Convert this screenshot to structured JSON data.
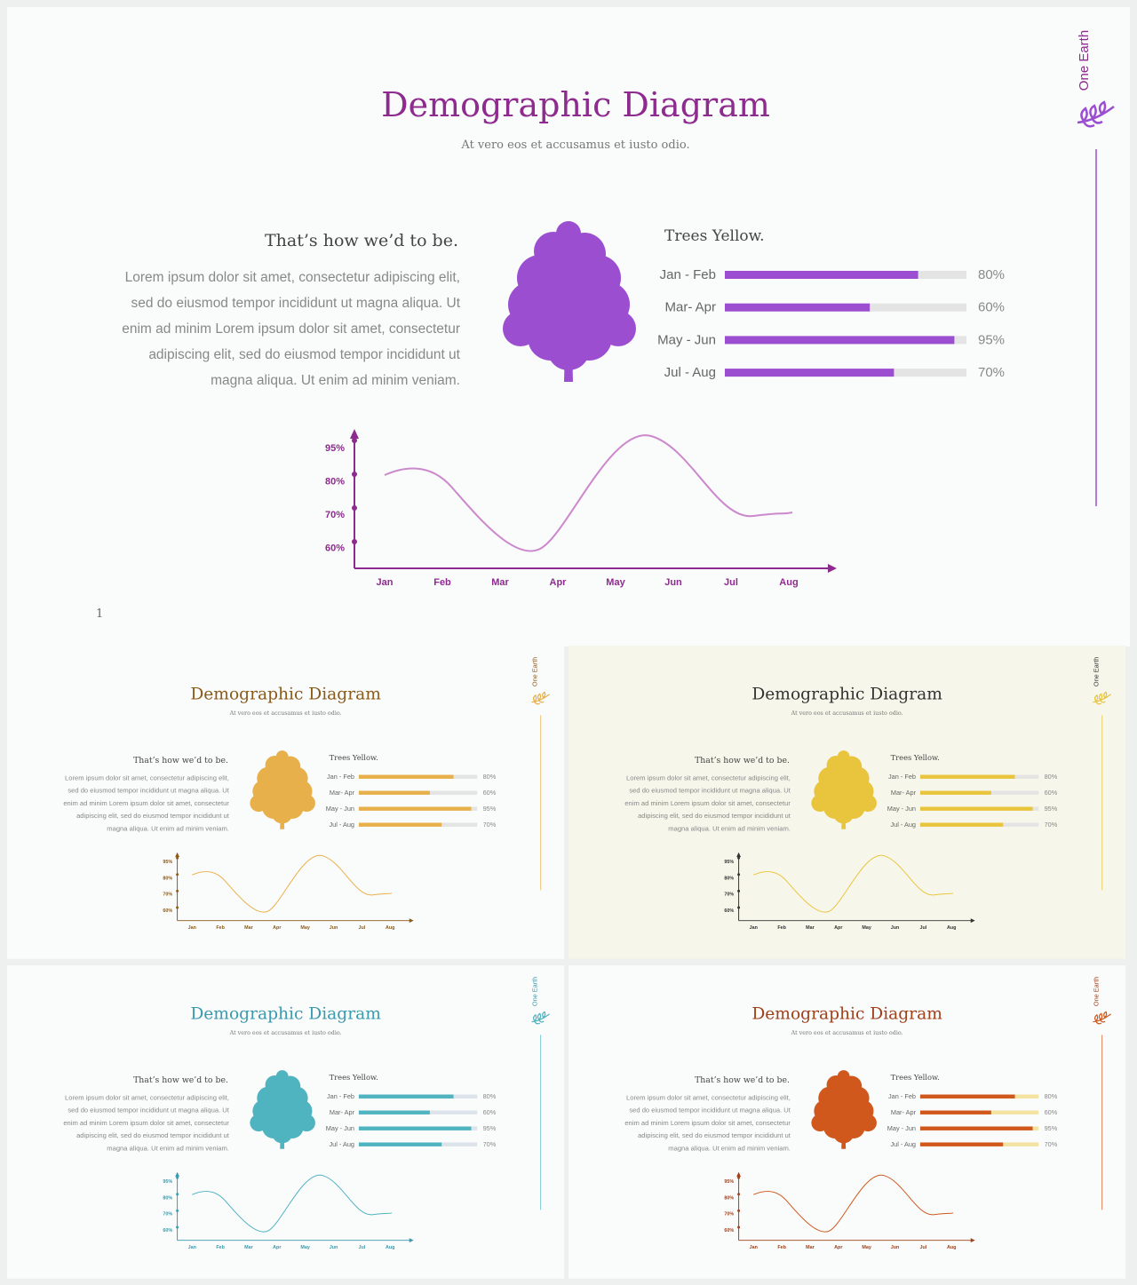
{
  "slides": [
    {
      "title": "Demographic Diagram",
      "subtitle": "At vero eos et accusamus et iusto odio.",
      "heading": "That’s how we’d to be.",
      "body": "Lorem ipsum dolor sit amet, consectetur adipiscing elit, sed do eiusmod tempor incididunt ut magna aliqua. Ut enim ad minim Lorem ipsum dolor sit amet, consectetur adipiscing elit, sed do eiusmod tempor incididunt ut magna aliqua. Ut enim ad minim veniam.",
      "brand": "One Earth",
      "page": "1",
      "colors": {
        "title": "#8e2b8e",
        "accent": "#9b4fd0",
        "track": "#e4e4e4",
        "bg": "#fafbfb"
      },
      "bars": {
        "title": "Trees Yellow.",
        "categories": [
          "Jan - Feb",
          "Mar- Apr",
          "May - Jun",
          "Jul - Aug"
        ],
        "values": [
          80,
          60,
          95,
          70
        ],
        "value_labels": [
          "80%",
          "60%",
          "95%",
          "70%"
        ]
      },
      "chart": {
        "yticks": [
          "95%",
          "80%",
          "70%",
          "60%"
        ],
        "categories": [
          "Jan",
          "Feb",
          "Mar",
          "Apr",
          "May",
          "Jun",
          "Jul",
          "Aug"
        ]
      }
    },
    {
      "title": "Demographic Diagram",
      "subtitle": "At vero eos et accusamus et iusto odio.",
      "heading": "That’s how we’d to be.",
      "body": "Lorem ipsum dolor sit amet, consectetur adipiscing elit, sed do eiusmod tempor incididunt ut magna aliqua. Ut enim ad minim Lorem ipsum dolor sit amet, consectetur adipiscing elit, sed do eiusmod tempor incididunt ut magna aliqua. Ut enim ad minim veniam.",
      "brand": "One Earth",
      "colors": {
        "title": "#8a5a1a",
        "accent": "#e8b04a",
        "track": "#e4e4e4",
        "bg": "#fafbfb"
      },
      "bars": {
        "title": "Trees Yellow.",
        "categories": [
          "Jan - Feb",
          "Mar- Apr",
          "May - Jun",
          "Jul - Aug"
        ],
        "values": [
          80,
          60,
          95,
          70
        ],
        "value_labels": [
          "80%",
          "60%",
          "95%",
          "70%"
        ]
      },
      "chart": {
        "yticks": [
          "95%",
          "80%",
          "70%",
          "60%"
        ],
        "categories": [
          "Jan",
          "Feb",
          "Mar",
          "Apr",
          "May",
          "Jun",
          "Jul",
          "Aug"
        ]
      }
    },
    {
      "title": "Demographic Diagram",
      "subtitle": "At vero eos et accusamus et iusto odio.",
      "heading": "That’s how we’d to be.",
      "body": "Lorem ipsum dolor sit amet, consectetur adipiscing elit, sed do eiusmod tempor incididunt ut magna aliqua. Ut enim ad minim Lorem ipsum dolor sit amet, consectetur adipiscing elit, sed do eiusmod tempor incididunt ut magna aliqua. Ut enim ad minim veniam.",
      "brand": "One Earth",
      "colors": {
        "title": "#333333",
        "accent": "#e9c53e",
        "track": "#e4e4e4",
        "bg": "#f7f6ea"
      },
      "bars": {
        "title": "Trees Yellow.",
        "categories": [
          "Jan - Feb",
          "Mar- Apr",
          "May - Jun",
          "Jul - Aug"
        ],
        "values": [
          80,
          60,
          95,
          70
        ],
        "value_labels": [
          "80%",
          "60%",
          "95%",
          "70%"
        ]
      },
      "chart": {
        "yticks": [
          "95%",
          "80%",
          "70%",
          "60%"
        ],
        "categories": [
          "Jan",
          "Feb",
          "Mar",
          "Apr",
          "May",
          "Jun",
          "Jul",
          "Aug"
        ]
      }
    },
    {
      "title": "Demographic Diagram",
      "subtitle": "At vero eos et accusamus et iusto odio.",
      "heading": "That’s how we’d to be.",
      "body": "Lorem ipsum dolor sit amet, consectetur adipiscing elit, sed do eiusmod tempor incididunt ut magna aliqua. Ut enim ad minim Lorem ipsum dolor sit amet, consectetur adipiscing elit, sed do eiusmod tempor incididunt ut magna aliqua. Ut enim ad minim veniam.",
      "brand": "One Earth",
      "colors": {
        "title": "#3a9aae",
        "accent": "#4fb3c0",
        "track": "#dde3ea",
        "bg": "#fafbfb"
      },
      "bars": {
        "title": "Trees Yellow.",
        "categories": [
          "Jan - Feb",
          "Mar- Apr",
          "May - Jun",
          "Jul - Aug"
        ],
        "values": [
          80,
          60,
          95,
          70
        ],
        "value_labels": [
          "80%",
          "60%",
          "95%",
          "70%"
        ]
      },
      "chart": {
        "yticks": [
          "95%",
          "80%",
          "70%",
          "60%"
        ],
        "categories": [
          "Jan",
          "Feb",
          "Mar",
          "Apr",
          "May",
          "Jun",
          "Jul",
          "Aug"
        ]
      }
    },
    {
      "title": "Demographic Diagram",
      "subtitle": "At vero eos et accusamus et iusto odio.",
      "heading": "That’s how we’d to be.",
      "body": "Lorem ipsum dolor sit amet, consectetur adipiscing elit, sed do eiusmod tempor incididunt ut magna aliqua. Ut enim ad minim Lorem ipsum dolor sit amet, consectetur adipiscing elit, sed do eiusmod tempor incididunt ut magna aliqua. Ut enim ad minim veniam.",
      "brand": "One Earth",
      "colors": {
        "title": "#a0401a",
        "accent": "#d0581c",
        "track": "#f3e2a0",
        "bg": "#fafbfb"
      },
      "bars": {
        "title": "Trees Yellow.",
        "categories": [
          "Jan - Feb",
          "Mar- Apr",
          "May - Jun",
          "Jul - Aug"
        ],
        "values": [
          80,
          60,
          95,
          70
        ],
        "value_labels": [
          "80%",
          "60%",
          "95%",
          "70%"
        ]
      },
      "chart": {
        "yticks": [
          "95%",
          "80%",
          "70%",
          "60%"
        ],
        "categories": [
          "Jan",
          "Feb",
          "Mar",
          "Apr",
          "May",
          "Jun",
          "Jul",
          "Aug"
        ]
      }
    }
  ]
}
